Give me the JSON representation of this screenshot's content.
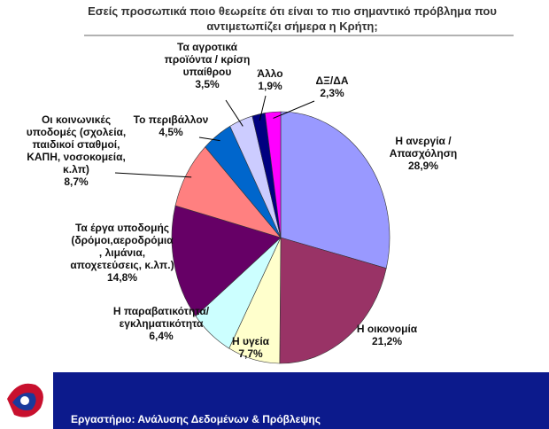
{
  "chart_data": {
    "type": "pie",
    "title": "Εσείς προσωπικά ποιο θεωρείτε ότι είναι το πιο σημαντικό πρόβλημα που\nαντιμετωπίζει σήμερα η Κρήτη;",
    "categories": [
      "Η ανεργία /\nΑπασχόληση",
      "Η οικονομία",
      "Η υγεία",
      "Η παραβατικότητα/\nεγκληματικότητα",
      "Τα έργα υποδομής\n(δρόμοι,αεροδρόμια\n, λιμάνια,\nαποχετεύσεις, κ.λπ.)",
      "Οι κοινωνικές\nυποδομές (σχολεία,\nπαιδικοί σταθμοί,\nΚΑΠΗ, νοσοκομεία,\nκ.λπ)",
      "Το περιβάλλον",
      "Τα αγροτικά\nπροϊόντα / κρίση\nυπαίθρου",
      "Άλλο",
      "ΔΞ/ΔΑ"
    ],
    "values": [
      28.9,
      21.2,
      7.7,
      6.4,
      14.8,
      8.7,
      4.5,
      3.5,
      1.9,
      2.3
    ],
    "value_labels": [
      "28,9%",
      "21,2%",
      "7,7%",
      "6,4%",
      "14,8%",
      "8,7%",
      "4,5%",
      "3,5%",
      "1,9%",
      "2,3%"
    ],
    "colors": [
      "#9999ff",
      "#993366",
      "#ffffcc",
      "#ccffff",
      "#660066",
      "#ff8080",
      "#0066cc",
      "#ccccff",
      "#000080",
      "#ff00ff"
    ]
  },
  "footer": {
    "text": "Εργαστήριο: Ανάλυσης Δεδομένων & Πρόβλεψης"
  }
}
